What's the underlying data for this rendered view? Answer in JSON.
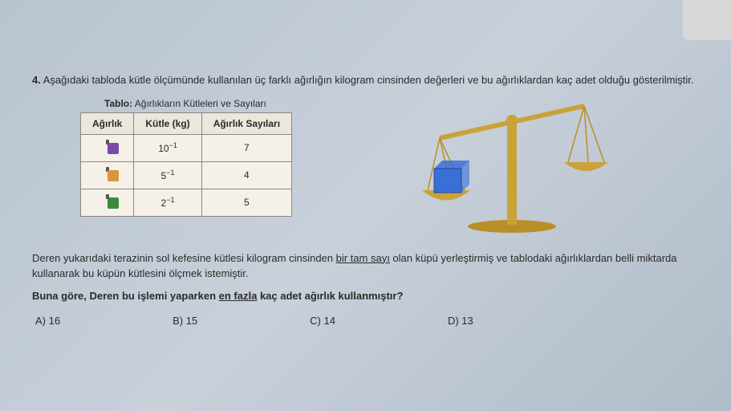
{
  "question": {
    "number": "4.",
    "intro": "Aşağıdaki tabloda kütle ölçümünde kullanılan üç farklı ağırlığın kilogram cinsinden değerleri ve bu ağırlıklardan kaç adet olduğu gösterilmiştir.",
    "table": {
      "title_bold": "Tablo:",
      "title_rest": " Ağırlıkların Kütleleri ve Sayıları",
      "columns": [
        "Ağırlık",
        "Kütle (kg)",
        "Ağırlık Sayıları"
      ],
      "rows": [
        {
          "icon_color": "#7a4aa8",
          "mass_base": "10",
          "mass_exp": "−1",
          "count": "7"
        },
        {
          "icon_color": "#d89838",
          "mass_base": "5",
          "mass_exp": "−1",
          "count": "4"
        },
        {
          "icon_color": "#3a8a3a",
          "mass_base": "2",
          "mass_exp": "−1",
          "count": "5"
        }
      ]
    },
    "paragraph_pre": "Deren yukarıdaki terazinin sol kefesine kütlesi kilogram cinsinden ",
    "paragraph_underlined": "bir tam sayı",
    "paragraph_post": " olan küpü yerleştirmiş ve tablodaki ağırlıklardan belli miktarda kullanarak bu küpün kütlesini ölçmek istemiştir.",
    "bold_pre": "Buna göre, Deren bu işlemi yaparken ",
    "bold_underlined": "en fazla",
    "bold_post": " kaç adet ağırlık kullanmıştır?",
    "options": {
      "A": "A) 16",
      "B": "B) 15",
      "C": "C) 14",
      "D": "D) 13"
    }
  },
  "scale": {
    "beam_color": "#c9a338",
    "chain_color": "#b89028",
    "pan_color": "#c9a338",
    "base_color": "#b89028",
    "cube_fill": "#3a6fd8",
    "cube_stroke": "#2048a0"
  }
}
